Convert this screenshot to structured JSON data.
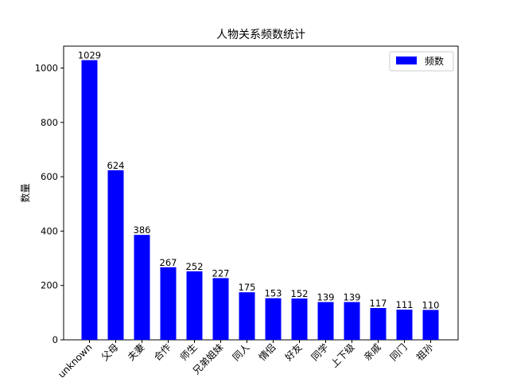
{
  "chart_data": {
    "type": "bar",
    "title": "人物关系频数统计",
    "xlabel": "",
    "ylabel": "数量",
    "categories": [
      "unknown",
      "父母",
      "夫妻",
      "合作",
      "师生",
      "兄弟姐妹",
      "同人",
      "情侣",
      "好友",
      "同学",
      "上下级",
      "亲戚",
      "同门",
      "祖孙"
    ],
    "series": [
      {
        "name": "频数",
        "color": "#0000ff",
        "values": [
          1029,
          624,
          386,
          267,
          252,
          227,
          175,
          153,
          152,
          139,
          139,
          117,
          111,
          110
        ]
      }
    ],
    "ylim": [
      0,
      1080.45
    ],
    "yticks": [
      0,
      200,
      400,
      600,
      800,
      1000
    ],
    "grid": false,
    "legend_position": "top-right",
    "data_labels": true
  }
}
